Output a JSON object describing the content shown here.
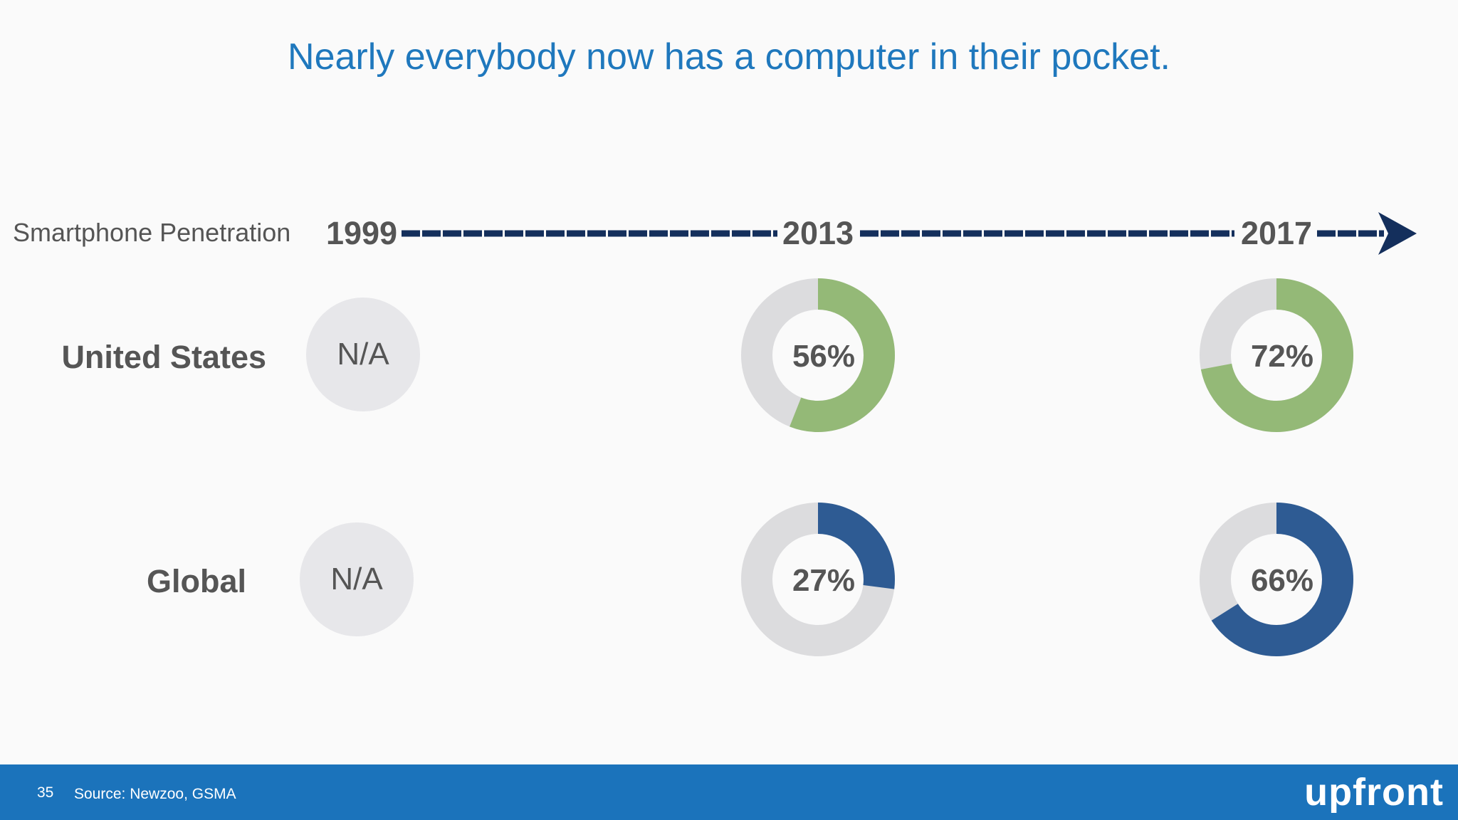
{
  "title": "Nearly everybody now has a computer in their pocket.",
  "row_header": "Smartphone Penetration",
  "years": [
    "1999",
    "2013",
    "2017"
  ],
  "regions": [
    "United States",
    "Global"
  ],
  "na_label": "N/A",
  "colors": {
    "title": "#1f78bd",
    "us": "#94b977",
    "global": "#2e5b93",
    "track": "#dcdcde",
    "na_fill": "#e7e7ea",
    "arrow": "#142f5c",
    "footer": "#1b73bb"
  },
  "chart_data": {
    "type": "donut",
    "title": "Nearly everybody now has a computer in their pocket.",
    "categories": [
      "1999",
      "2013",
      "2017"
    ],
    "series": [
      {
        "name": "United States",
        "values": [
          null,
          56,
          72
        ],
        "labels": [
          "N/A",
          "56%",
          "72%"
        ]
      },
      {
        "name": "Global",
        "values": [
          null,
          27,
          66
        ],
        "labels": [
          "N/A",
          "27%",
          "66%"
        ]
      }
    ],
    "unit": "%"
  },
  "footer": {
    "page_number": "35",
    "source": "Source: Newzoo, GSMA",
    "brand": "upfront"
  }
}
